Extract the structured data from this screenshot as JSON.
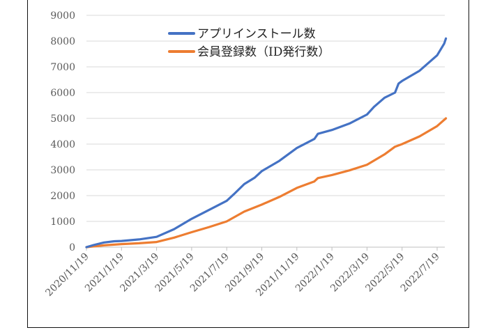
{
  "chart_data": {
    "type": "line",
    "title": "",
    "xlabel": "",
    "ylabel": "",
    "ylim": [
      0,
      9000
    ],
    "y_ticks": [
      "0",
      "1000",
      "2000",
      "3000",
      "4000",
      "5000",
      "6000",
      "7000",
      "8000",
      "9000"
    ],
    "x_tick_labels": [
      "2020/11/19",
      "2021/1/19",
      "2021/3/19",
      "2021/5/19",
      "2021/7/19",
      "2021/9/19",
      "2021/11/19",
      "2022/1/19",
      "2022/3/19",
      "2022/5/19",
      "2022/7/19"
    ],
    "x_unit": "two-month tick index from 2020/11/19",
    "grid": true,
    "legend_position": "top-center",
    "series": [
      {
        "name": "アプリインストール数",
        "color": "#4472C4",
        "x": [
          0,
          0.2,
          0.5,
          0.8,
          1,
          1.5,
          2,
          2.5,
          3,
          3.5,
          4,
          4.2,
          4.5,
          4.8,
          5,
          5.5,
          6,
          6.5,
          6.6,
          7,
          7.5,
          8,
          8.2,
          8.5,
          8.8,
          8.9,
          9,
          9.5,
          10,
          10.2,
          10.25
        ],
        "y": [
          0,
          80,
          180,
          230,
          240,
          300,
          400,
          700,
          1100,
          1450,
          1800,
          2050,
          2450,
          2700,
          2950,
          3350,
          3850,
          4200,
          4400,
          4550,
          4800,
          5150,
          5450,
          5800,
          6000,
          6350,
          6450,
          6850,
          7450,
          7900,
          8100
        ]
      },
      {
        "name": "会員登録数（ID発行数）",
        "color": "#ED7D31",
        "x": [
          0,
          0.5,
          1,
          1.5,
          2,
          2.5,
          3,
          3.5,
          4,
          4.5,
          5,
          5.5,
          6,
          6.5,
          6.6,
          7,
          7.5,
          8,
          8.5,
          8.8,
          9,
          9.5,
          10,
          10.25
        ],
        "y": [
          0,
          70,
          120,
          150,
          200,
          370,
          580,
          780,
          1000,
          1380,
          1650,
          1950,
          2300,
          2550,
          2680,
          2800,
          2980,
          3200,
          3600,
          3900,
          4000,
          4300,
          4700,
          5000
        ]
      }
    ]
  }
}
